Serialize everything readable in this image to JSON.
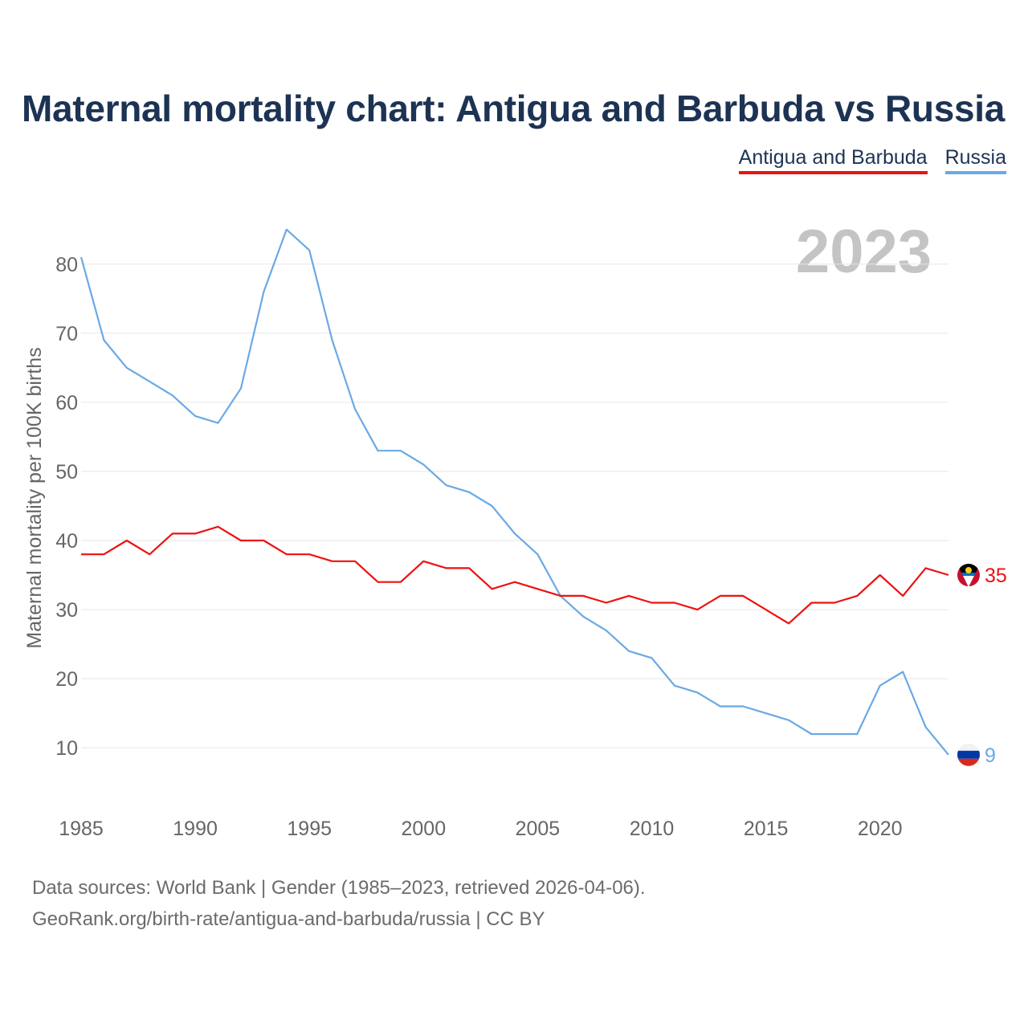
{
  "chart_data": {
    "type": "line",
    "title": "Maternal mortality chart: Antigua and Barbuda vs Russia",
    "ylabel": "Maternal mortality per 100K births",
    "xlabel": "",
    "year_label": "2023",
    "xlim": [
      1985,
      2023
    ],
    "ylim": [
      2,
      88
    ],
    "x_ticks": [
      1985,
      1990,
      1995,
      2000,
      2005,
      2010,
      2015,
      2020
    ],
    "y_ticks": [
      10,
      20,
      30,
      40,
      50,
      60,
      70,
      80
    ],
    "x": [
      1985,
      1986,
      1987,
      1988,
      1989,
      1990,
      1991,
      1992,
      1993,
      1994,
      1995,
      1996,
      1997,
      1998,
      1999,
      2000,
      2001,
      2002,
      2003,
      2004,
      2005,
      2006,
      2007,
      2008,
      2009,
      2010,
      2011,
      2012,
      2013,
      2014,
      2015,
      2016,
      2017,
      2018,
      2019,
      2020,
      2021,
      2022,
      2023
    ],
    "series": [
      {
        "name": "Antigua and Barbuda",
        "color": "#ee1111",
        "end_label": "35",
        "values": [
          38,
          38,
          40,
          38,
          41,
          41,
          42,
          40,
          40,
          38,
          38,
          37,
          37,
          34,
          34,
          37,
          36,
          36,
          33,
          34,
          33,
          32,
          32,
          31,
          32,
          31,
          31,
          30,
          32,
          32,
          30,
          28,
          31,
          31,
          32,
          35,
          32,
          36,
          35
        ]
      },
      {
        "name": "Russia",
        "color": "#6aa9e4",
        "end_label": "9",
        "values": [
          81,
          69,
          65,
          63,
          61,
          58,
          57,
          62,
          76,
          85,
          82,
          69,
          59,
          53,
          53,
          51,
          48,
          47,
          45,
          41,
          38,
          32,
          29,
          27,
          24,
          23,
          19,
          18,
          16,
          16,
          15,
          14,
          12,
          12,
          12,
          19,
          21,
          13,
          9
        ]
      }
    ]
  },
  "footer": {
    "line1": "Data sources: World Bank | Gender (1985–2023, retrieved 2026-04-06).",
    "line2": "GeoRank.org/birth-rate/antigua-and-barbuda/russia | CC BY"
  }
}
